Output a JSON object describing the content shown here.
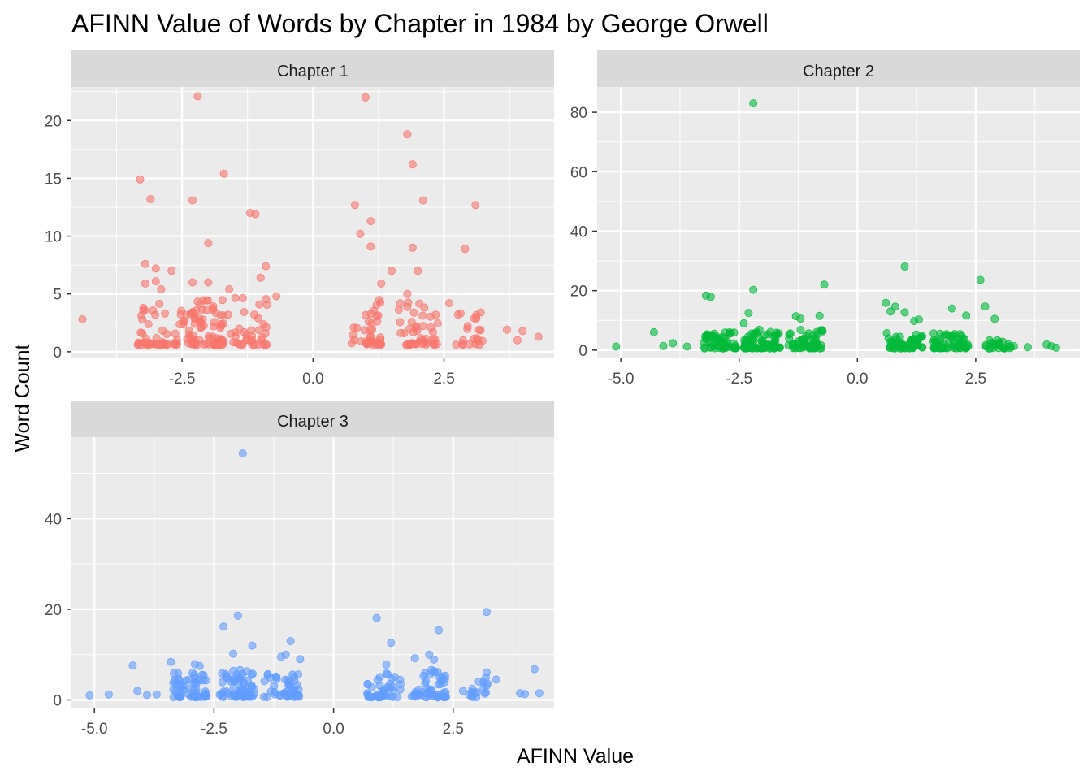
{
  "title": "AFINN Value of Words by Chapter in 1984 by George Orwell",
  "xlabel": "AFINN Value",
  "ylabel": "Word Count",
  "colors": {
    "panel_bg": "#ebebeb",
    "strip_bg": "#d9d9d9",
    "grid": "#ffffff",
    "tick_text": "#4d4d4d"
  },
  "chart_data": [
    {
      "type": "scatter",
      "strip": "Chapter 1",
      "color": "#f8766d",
      "xlim": [
        -4.61,
        4.6
      ],
      "ylim": [
        -0.5,
        22.9
      ],
      "xticks": [
        -2.5,
        0,
        2.5
      ],
      "xtick_labels": [
        "-2.5",
        "0.0",
        "2.5"
      ],
      "yticks": [
        0,
        5,
        10,
        15,
        20
      ],
      "ytick_labels": [
        "0",
        "5",
        "10",
        "15",
        "20"
      ],
      "outliers": [
        [
          -4.4,
          2.8
        ],
        [
          -3.3,
          14.9
        ],
        [
          -3.1,
          13.2
        ],
        [
          -3.2,
          7.6
        ],
        [
          -3.0,
          7.2
        ],
        [
          -2.7,
          7.0
        ],
        [
          -3.0,
          6.1
        ],
        [
          -3.2,
          5.9
        ],
        [
          -2.9,
          5.4
        ],
        [
          -2.2,
          22.1
        ],
        [
          -2.3,
          13.1
        ],
        [
          -2.0,
          9.4
        ],
        [
          -1.7,
          15.4
        ],
        [
          -2.3,
          6.0
        ],
        [
          -2.0,
          6.0
        ],
        [
          -1.6,
          5.4
        ],
        [
          -1.2,
          12.0
        ],
        [
          -1.1,
          11.9
        ],
        [
          -0.9,
          7.4
        ],
        [
          -1.0,
          6.4
        ],
        [
          -0.7,
          4.8
        ],
        [
          1.0,
          22.0
        ],
        [
          1.1,
          11.3
        ],
        [
          1.1,
          9.1
        ],
        [
          0.9,
          10.2
        ],
        [
          0.8,
          12.7
        ],
        [
          1.8,
          18.8
        ],
        [
          1.9,
          16.2
        ],
        [
          2.1,
          13.1
        ],
        [
          1.9,
          9.0
        ],
        [
          2.0,
          7.0
        ],
        [
          1.5,
          7.0
        ],
        [
          1.3,
          5.9
        ],
        [
          1.8,
          5.0
        ],
        [
          2.9,
          8.9
        ],
        [
          3.1,
          12.7
        ],
        [
          2.6,
          4.2
        ],
        [
          3.2,
          3.4
        ],
        [
          3.7,
          1.9
        ],
        [
          3.9,
          1.0
        ],
        [
          4.0,
          1.8
        ],
        [
          4.3,
          1.3
        ]
      ],
      "clusters": [
        {
          "x": -3.05,
          "spread": 0.3,
          "n": 38,
          "ymax": 5
        },
        {
          "x": -2.45,
          "spread": 0.22,
          "n": 26,
          "ymax": 4
        },
        {
          "x": -2.0,
          "spread": 0.3,
          "n": 62,
          "ymax": 4.5
        },
        {
          "x": -1.25,
          "spread": 0.38,
          "n": 38,
          "ymax": 4.8
        },
        {
          "x": 1.0,
          "spread": 0.32,
          "n": 42,
          "ymax": 4.5
        },
        {
          "x": 2.0,
          "spread": 0.38,
          "n": 48,
          "ymax": 4.5
        },
        {
          "x": 3.0,
          "spread": 0.3,
          "n": 20,
          "ymax": 3.5
        }
      ]
    },
    {
      "type": "scatter",
      "strip": "Chapter 2",
      "color": "#00ba38",
      "xlim": [
        -5.5,
        4.7
      ],
      "ylim": [
        -2.5,
        88.5
      ],
      "xticks": [
        -5,
        -2.5,
        0,
        2.5
      ],
      "xtick_labels": [
        "-5.0",
        "-2.5",
        "0.0",
        "2.5"
      ],
      "yticks": [
        0,
        20,
        40,
        60,
        80
      ],
      "ytick_labels": [
        "0",
        "20",
        "40",
        "60",
        "80"
      ],
      "outliers": [
        [
          -5.1,
          1.2
        ],
        [
          -4.3,
          6.0
        ],
        [
          -4.1,
          1.4
        ],
        [
          -3.9,
          2.3
        ],
        [
          -3.6,
          1.2
        ],
        [
          -3.2,
          18.3
        ],
        [
          -3.1,
          17.9
        ],
        [
          -2.2,
          83.0
        ],
        [
          -2.2,
          20.3
        ],
        [
          -2.3,
          12.5
        ],
        [
          -2.4,
          9.0
        ],
        [
          -1.3,
          11.4
        ],
        [
          -1.2,
          10.6
        ],
        [
          -0.8,
          11.5
        ],
        [
          -0.7,
          22.0
        ],
        [
          1.0,
          28.1
        ],
        [
          0.6,
          15.9
        ],
        [
          0.8,
          14.6
        ],
        [
          0.7,
          13.0
        ],
        [
          1.0,
          12.7
        ],
        [
          1.2,
          9.8
        ],
        [
          1.3,
          10.3
        ],
        [
          2.0,
          14.0
        ],
        [
          2.3,
          11.6
        ],
        [
          2.6,
          23.6
        ],
        [
          2.7,
          14.7
        ],
        [
          2.9,
          10.5
        ],
        [
          3.6,
          1.0
        ],
        [
          4.0,
          1.9
        ],
        [
          4.1,
          1.3
        ],
        [
          4.2,
          0.8
        ]
      ],
      "clusters": [
        {
          "x": -2.9,
          "spread": 0.35,
          "n": 55,
          "ymax": 6
        },
        {
          "x": -2.0,
          "spread": 0.4,
          "n": 75,
          "ymax": 7
        },
        {
          "x": -1.1,
          "spread": 0.38,
          "n": 55,
          "ymax": 7
        },
        {
          "x": 1.0,
          "spread": 0.38,
          "n": 55,
          "ymax": 6
        },
        {
          "x": 2.0,
          "spread": 0.4,
          "n": 60,
          "ymax": 6
        },
        {
          "x": 3.0,
          "spread": 0.32,
          "n": 25,
          "ymax": 4
        }
      ]
    },
    {
      "type": "scatter",
      "strip": "Chapter 3",
      "color": "#619cff",
      "xlim": [
        -5.48,
        4.61
      ],
      "ylim": [
        -1.7,
        58.0
      ],
      "xticks": [
        -5,
        -2.5,
        0,
        2.5
      ],
      "xtick_labels": [
        "-5.0",
        "-2.5",
        "0.0",
        "2.5"
      ],
      "yticks": [
        0,
        20,
        40
      ],
      "ytick_labels": [
        "0",
        "20",
        "40"
      ],
      "outliers": [
        [
          -5.1,
          1.0
        ],
        [
          -4.7,
          1.2
        ],
        [
          -4.2,
          7.6
        ],
        [
          -4.1,
          2.0
        ],
        [
          -3.9,
          1.1
        ],
        [
          -3.7,
          1.2
        ],
        [
          -3.4,
          8.4
        ],
        [
          -2.9,
          7.9
        ],
        [
          -2.8,
          7.5
        ],
        [
          -2.3,
          16.2
        ],
        [
          -2.0,
          18.6
        ],
        [
          -1.9,
          54.4
        ],
        [
          -2.1,
          10.2
        ],
        [
          -1.7,
          12.0
        ],
        [
          -1.1,
          9.5
        ],
        [
          -1.0,
          10.0
        ],
        [
          -0.9,
          13.0
        ],
        [
          -0.7,
          9.0
        ],
        [
          0.9,
          18.1
        ],
        [
          1.2,
          12.6
        ],
        [
          1.1,
          7.8
        ],
        [
          1.7,
          9.2
        ],
        [
          2.0,
          10.0
        ],
        [
          2.2,
          15.4
        ],
        [
          2.1,
          8.9
        ],
        [
          3.2,
          19.4
        ],
        [
          3.2,
          6.1
        ],
        [
          3.4,
          4.5
        ],
        [
          3.9,
          1.5
        ],
        [
          4.0,
          1.3
        ],
        [
          4.2,
          6.8
        ],
        [
          4.3,
          1.5
        ]
      ],
      "clusters": [
        {
          "x": -3.0,
          "spread": 0.35,
          "n": 55,
          "ymax": 6
        },
        {
          "x": -2.0,
          "spread": 0.38,
          "n": 65,
          "ymax": 7
        },
        {
          "x": -1.1,
          "spread": 0.38,
          "n": 45,
          "ymax": 6
        },
        {
          "x": 1.05,
          "spread": 0.35,
          "n": 45,
          "ymax": 6
        },
        {
          "x": 2.0,
          "spread": 0.38,
          "n": 50,
          "ymax": 7
        },
        {
          "x": 3.0,
          "spread": 0.32,
          "n": 18,
          "ymax": 5
        }
      ]
    }
  ]
}
